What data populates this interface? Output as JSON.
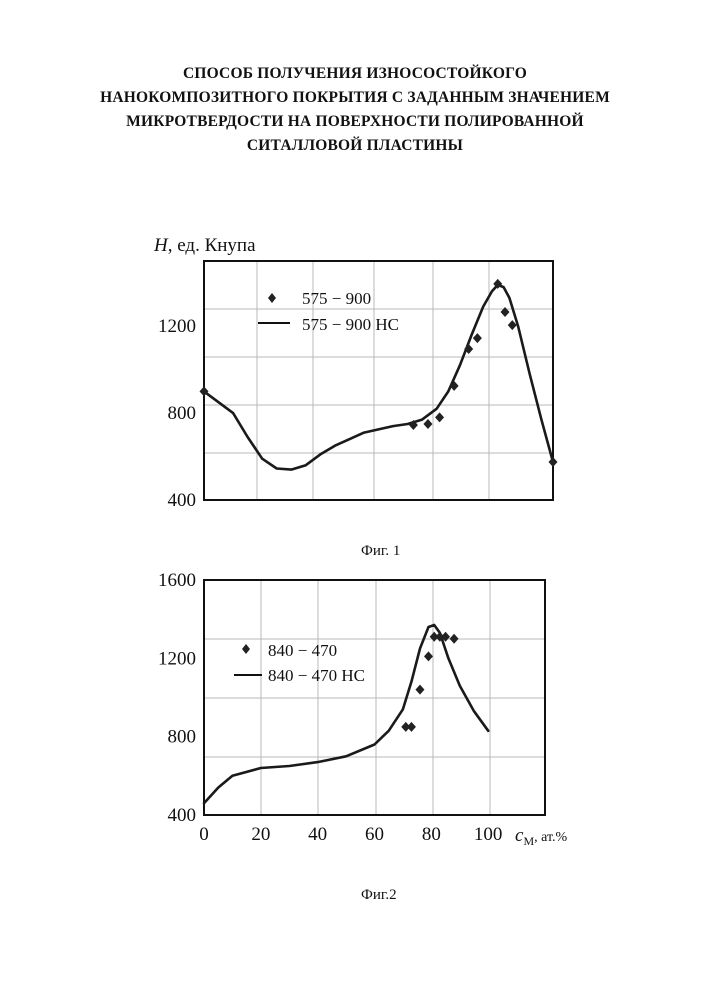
{
  "title": {
    "lines": [
      "СПОСОБ ПОЛУЧЕНИЯ ИЗНОСОСТОЙКОГО",
      "НАНОКОМПОЗИТНОГО ПОКРЫТИЯ С ЗАДАННЫМ ЗНАЧЕНИЕМ",
      "МИКРОТВЕРДОСТИ НА ПОВЕРХНОСТИ ПОЛИРОВАННОЙ",
      "СИТАЛЛОВОЙ ПЛАСТИНЫ"
    ]
  },
  "captions": {
    "fig1": "Фиг. 1",
    "fig2": "Фиг.2"
  },
  "chart_data": [
    {
      "type": "line",
      "title": "",
      "ylabel_symbol": "H",
      "ylabel_rest": ", ед. Кнупа",
      "xlabel": "",
      "xlim": [
        0,
        120
      ],
      "ylim": [
        400,
        1500
      ],
      "yticks": [
        400,
        800,
        1200
      ],
      "yticklabels": [
        "400",
        "800",
        "1200"
      ],
      "grid": true,
      "legend": "top-left",
      "series": [
        {
          "name": "575 − 900",
          "marker": "diamond",
          "x": [
            0,
            72,
            77,
            81,
            86,
            91,
            94,
            101,
            103.5,
            106,
            120
          ],
          "y": [
            900,
            745,
            750,
            780,
            925,
            1095,
            1145,
            1395,
            1265,
            1205,
            575
          ]
        },
        {
          "name": "575 − 900 НС",
          "marker": "line",
          "x": [
            0,
            10,
            15,
            20,
            25,
            30,
            35,
            40,
            45,
            50,
            55,
            60,
            65,
            70,
            75,
            80,
            84,
            88,
            92,
            96,
            99,
            101,
            103,
            105,
            108,
            112,
            116,
            120
          ],
          "y": [
            900,
            800,
            690,
            590,
            545,
            540,
            560,
            610,
            650,
            680,
            710,
            725,
            740,
            750,
            770,
            820,
            900,
            1020,
            1160,
            1290,
            1360,
            1390,
            1380,
            1330,
            1200,
            980,
            770,
            575
          ]
        }
      ]
    },
    {
      "type": "line",
      "title": "",
      "ylabel": "",
      "xlabel_symbol": "c",
      "xlabel_sub": "М",
      "xlabel_rest": ", ат.%",
      "xlim": [
        0,
        120
      ],
      "ylim": [
        400,
        1600
      ],
      "xticks": [
        0,
        20,
        40,
        60,
        80,
        100
      ],
      "xticklabels": [
        "0",
        "20",
        "40",
        "60",
        "80",
        "100"
      ],
      "yticks": [
        400,
        800,
        1200,
        1600
      ],
      "yticklabels": [
        "400",
        "800",
        "1200",
        "1600"
      ],
      "grid": true,
      "legend": "top-left",
      "series": [
        {
          "name": "840 − 470",
          "marker": "diamond",
          "x": [
            71,
            73,
            76,
            79,
            81,
            83,
            85,
            88
          ],
          "y": [
            850,
            850,
            1040,
            1210,
            1310,
            1310,
            1310,
            1300
          ]
        },
        {
          "name": "840 − 470 НС",
          "marker": "line",
          "x": [
            0,
            5,
            10,
            20,
            30,
            40,
            50,
            60,
            65,
            70,
            73,
            76,
            79,
            81,
            83,
            86,
            90,
            95,
            100
          ],
          "y": [
            460,
            540,
            600,
            640,
            650,
            670,
            700,
            760,
            830,
            940,
            1080,
            1250,
            1360,
            1370,
            1330,
            1200,
            1060,
            930,
            830
          ]
        }
      ]
    }
  ]
}
